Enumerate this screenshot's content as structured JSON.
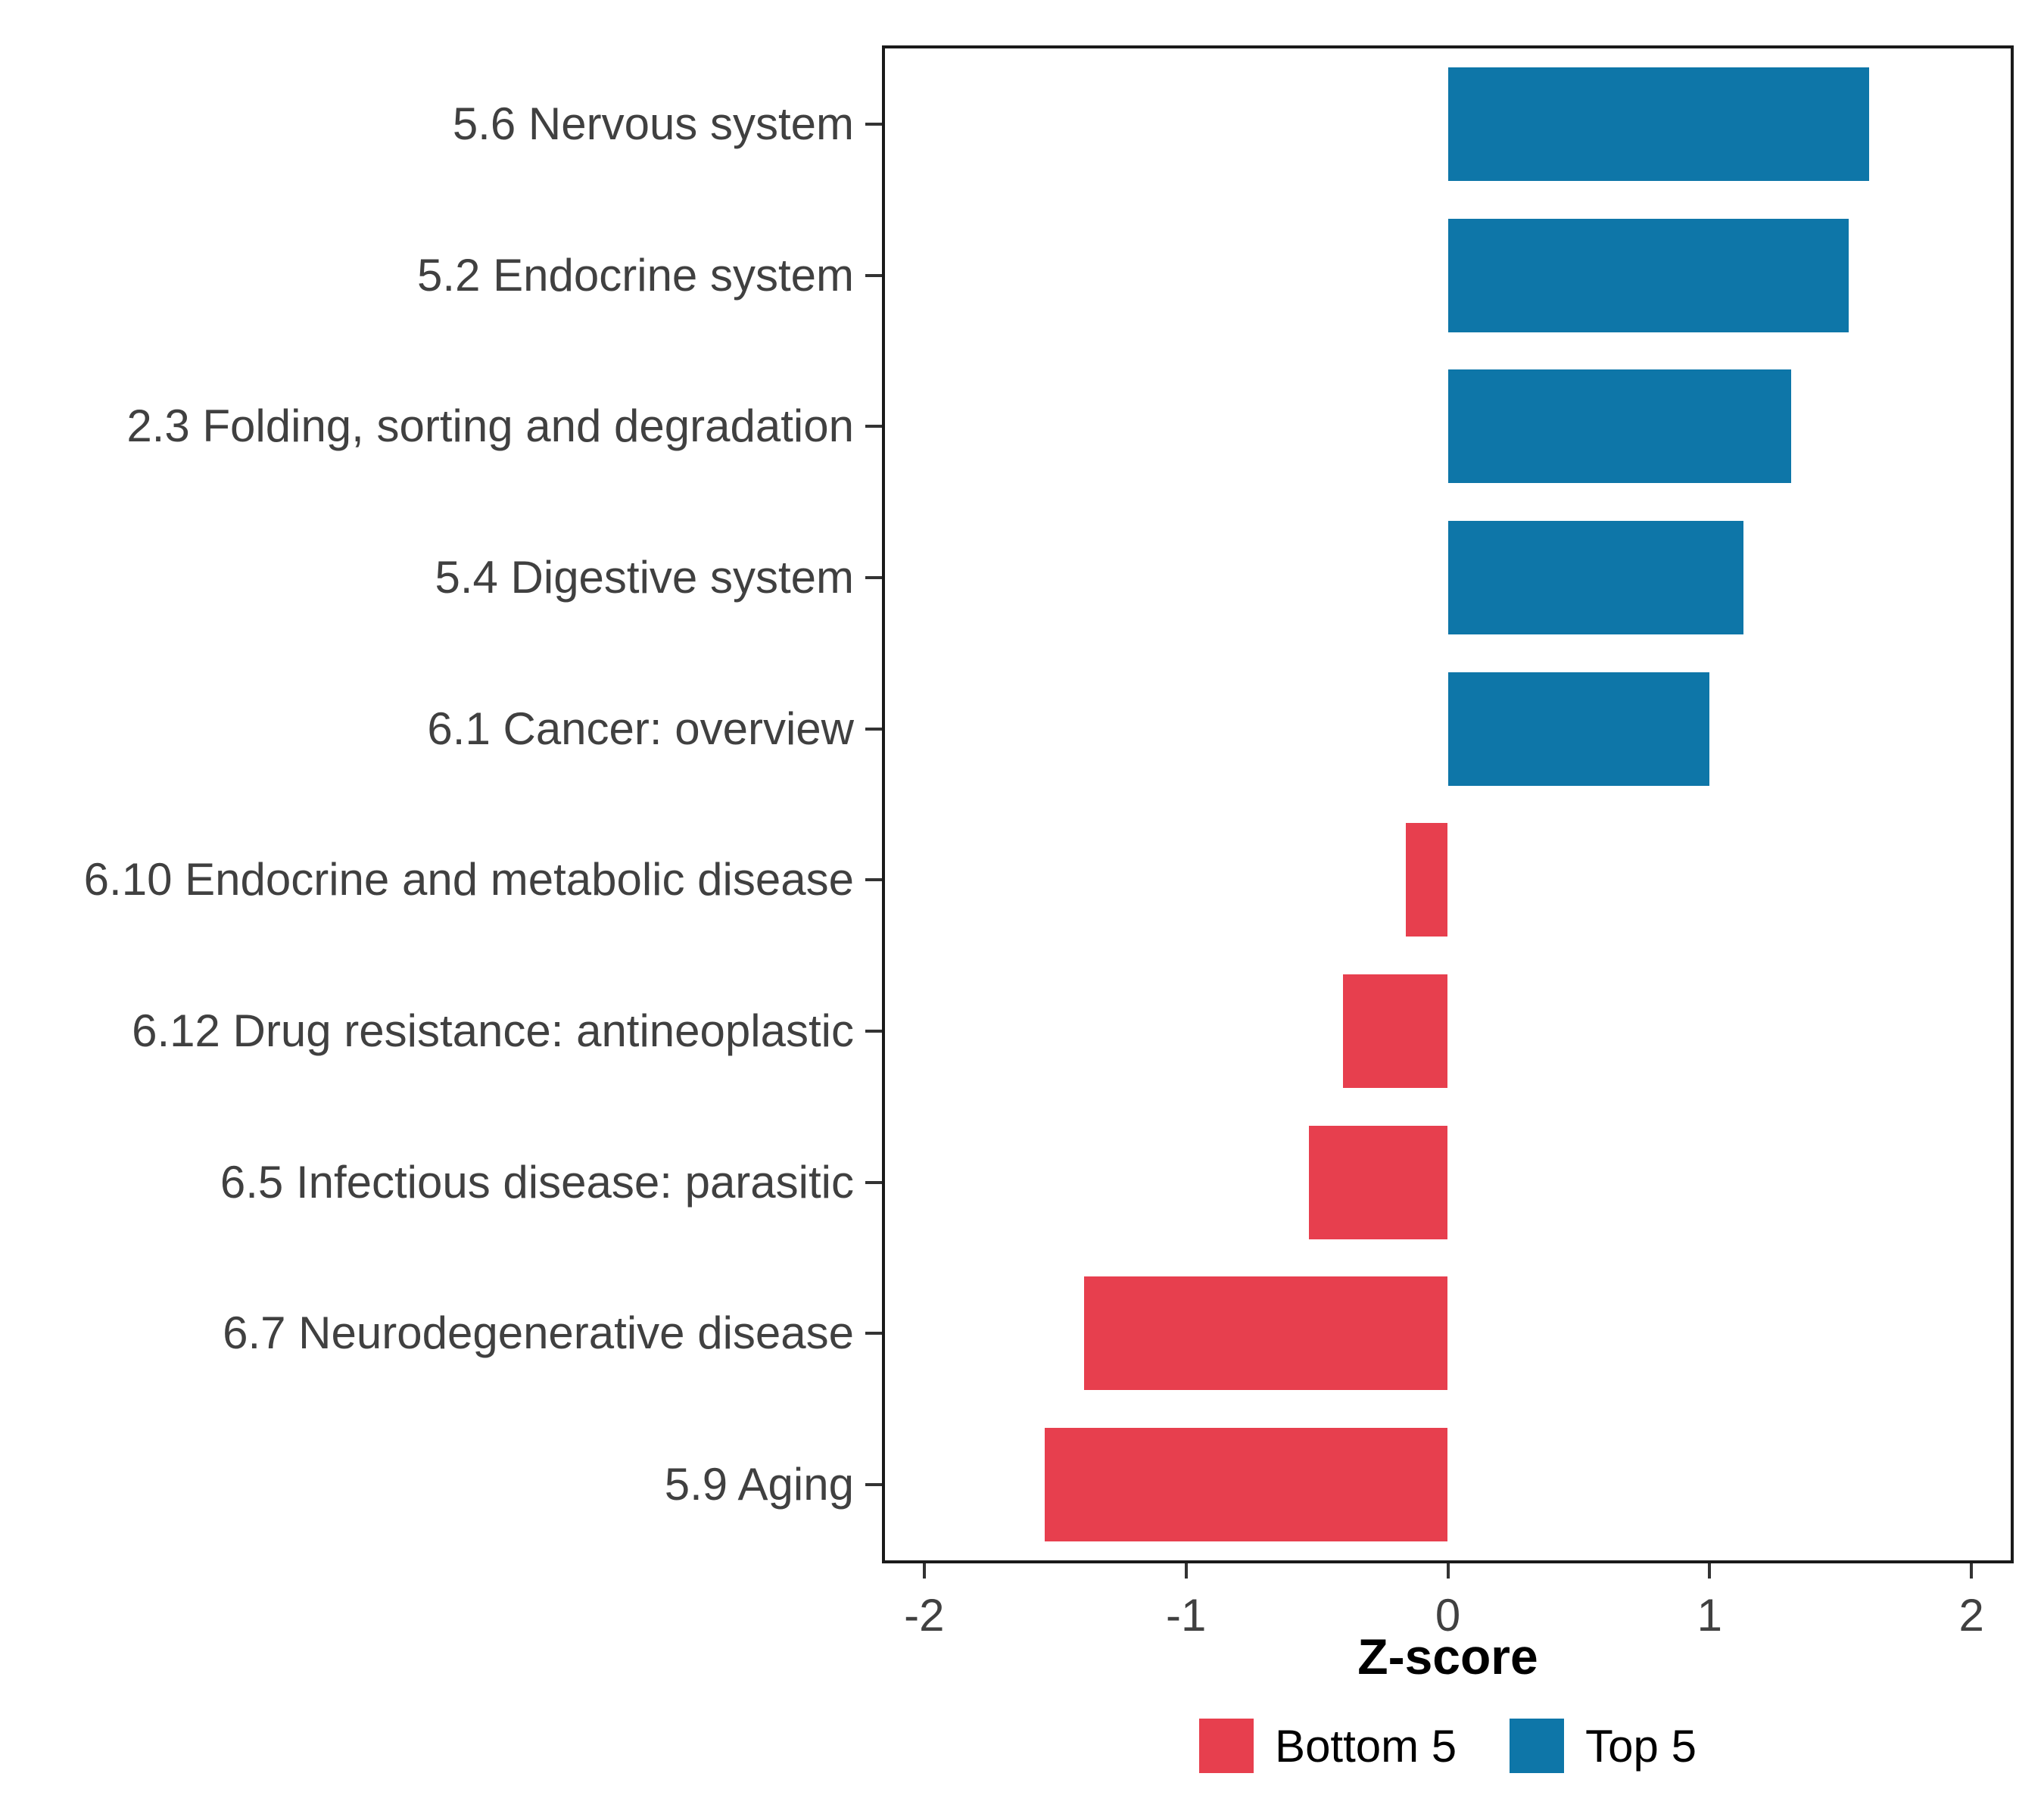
{
  "figure": {
    "background": "#FFFFFF",
    "panel_border_color": "#1A1A1A",
    "tick_color": "#333333",
    "axis_text_color": "#404040",
    "axis_title_color": "#000000"
  },
  "chart_data": {
    "type": "bar",
    "orientation": "horizontal",
    "title": "",
    "xlabel": "Z-score",
    "ylabel": "",
    "xlim": [
      -2.15,
      2.15
    ],
    "xticks": [
      -2,
      -1,
      0,
      1,
      2
    ],
    "xtick_labels": [
      "-2",
      "-1",
      "0",
      "1",
      "2"
    ],
    "grid": false,
    "categories": [
      "5.6 Nervous system",
      "5.2 Endocrine system",
      "2.3 Folding, sorting and degradation",
      "5.4 Digestive system",
      "6.1 Cancer: overview",
      "6.10 Endocrine and metabolic disease",
      "6.12 Drug resistance: antineoplastic",
      "6.5 Infectious disease: parasitic",
      "6.7 Neurodegenerative disease",
      "5.9 Aging"
    ],
    "values": [
      1.61,
      1.53,
      1.31,
      1.13,
      1.0,
      -0.16,
      -0.4,
      -0.53,
      -1.39,
      -1.54
    ],
    "groups": [
      "Top 5",
      "Top 5",
      "Top 5",
      "Top 5",
      "Top 5",
      "Bottom 5",
      "Bottom 5",
      "Bottom 5",
      "Bottom 5",
      "Bottom 5"
    ],
    "colors": {
      "Top 5": "#0E76A8",
      "Bottom 5": "#E73F4E"
    },
    "legend": {
      "position": "bottom",
      "items": [
        {
          "label": "Bottom 5",
          "color": "#E73F4E"
        },
        {
          "label": "Top 5",
          "color": "#0E76A8"
        }
      ]
    }
  }
}
